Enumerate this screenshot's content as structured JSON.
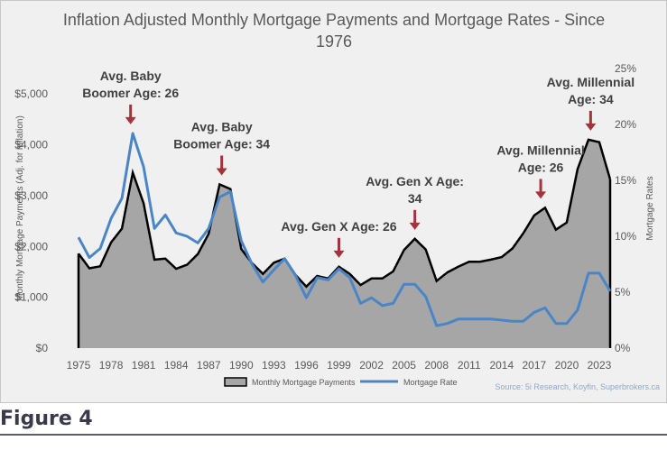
{
  "chart_data": {
    "type": "area",
    "title": "Inflation Adjusted Monthly Mortgage Payments and Mortgage Rates - Since 1976",
    "ylabel": "Monthly Mortgage Payments (Adj. for inflation)",
    "y2label": "Mortgage Rates",
    "ylim": [
      0,
      5500
    ],
    "y2lim": [
      0,
      25
    ],
    "xlim": [
      1975,
      2024
    ],
    "xticks": [
      "1975",
      "1978",
      "1981",
      "1984",
      "1987",
      "1990",
      "1993",
      "1996",
      "1999",
      "2002",
      "2005",
      "2008",
      "2011",
      "2014",
      "2017",
      "2020",
      "2023"
    ],
    "yticks": [
      "$0",
      "$1,000",
      "$2,000",
      "$3,000",
      "$4,000",
      "$5,000"
    ],
    "y2ticks": [
      "0%",
      "5%",
      "10%",
      "15%",
      "20%",
      "25%"
    ],
    "legend_position": "bottom",
    "grid": false,
    "x": [
      1975,
      1976,
      1977,
      1978,
      1979,
      1980,
      1981,
      1982,
      1983,
      1984,
      1985,
      1986,
      1987,
      1988,
      1989,
      1990,
      1991,
      1992,
      1993,
      1994,
      1995,
      1996,
      1997,
      1998,
      1999,
      2000,
      2001,
      2002,
      2003,
      2004,
      2005,
      2006,
      2007,
      2008,
      2009,
      2010,
      2011,
      2012,
      2013,
      2014,
      2015,
      2016,
      2017,
      2018,
      2019,
      2020,
      2021,
      2022,
      2023,
      2024
    ],
    "series": [
      {
        "name": "Monthly Mortgage Payments",
        "type": "area",
        "axis": "left",
        "values": [
          1860,
          1570,
          1610,
          2080,
          2350,
          3450,
          2850,
          1740,
          1760,
          1560,
          1640,
          1850,
          2250,
          3220,
          3130,
          1950,
          1670,
          1460,
          1680,
          1760,
          1440,
          1210,
          1420,
          1370,
          1600,
          1460,
          1240,
          1370,
          1370,
          1510,
          1930,
          2150,
          1940,
          1320,
          1490,
          1600,
          1700,
          1700,
          1740,
          1790,
          1960,
          2260,
          2610,
          2760,
          2330,
          2470,
          3520,
          4100,
          4050,
          3320
        ]
      },
      {
        "name": "Mortgage Rate",
        "type": "line",
        "axis": "right",
        "values": [
          9.9,
          8.1,
          8.9,
          11.6,
          13.4,
          19.2,
          16.2,
          10.7,
          11.9,
          10.3,
          10.0,
          9.4,
          10.7,
          13.5,
          14.0,
          9.6,
          7.5,
          5.9,
          7.0,
          8.0,
          6.5,
          4.5,
          6.3,
          6.1,
          7.1,
          6.3,
          4.0,
          4.5,
          3.8,
          4.0,
          5.7,
          5.7,
          4.6,
          2.0,
          2.2,
          2.6,
          2.6,
          2.6,
          2.6,
          2.5,
          2.4,
          2.4,
          3.2,
          3.6,
          2.2,
          2.2,
          3.4,
          6.7,
          6.7,
          5.1
        ]
      }
    ],
    "annotations": [
      {
        "lines": [
          "Avg. Baby",
          "Boomer Age: 26"
        ],
        "year": 1979.8
      },
      {
        "lines": [
          "Avg. Baby",
          "Boomer Age: 34"
        ],
        "year": 1988.2
      },
      {
        "lines": [
          "Avg. Gen X Age: 26"
        ],
        "year": 1999.0
      },
      {
        "lines": [
          "Avg. Gen X Age:",
          "34"
        ],
        "year": 2006.0
      },
      {
        "lines": [
          "Avg. Millennial",
          "Age: 26"
        ],
        "year": 2017.6
      },
      {
        "lines": [
          "Avg. Millennial",
          "Age: 34"
        ],
        "year": 2022.2
      }
    ],
    "source": "Source: 5i Research, Koyfin, Superbrokers.ca",
    "colors": {
      "area_fill": "#a6a6a6",
      "area_line": "#000000",
      "rate_line": "#4a86c6",
      "arrow": "#a4343a"
    }
  },
  "footer": {
    "figure_label": "Figure 4"
  }
}
